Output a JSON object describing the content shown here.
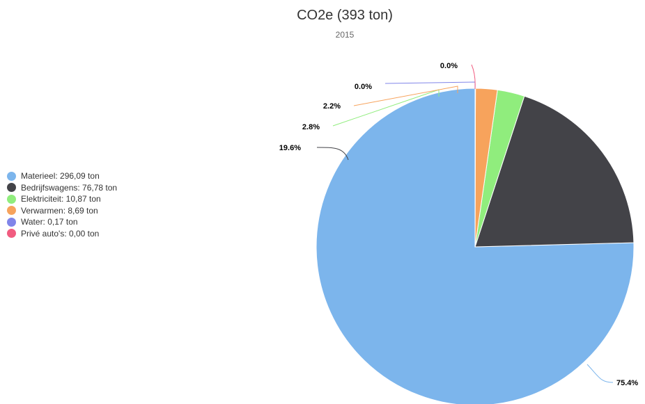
{
  "chart_data": {
    "type": "pie",
    "title": "CO2e (393 ton)",
    "subtitle": "2015",
    "legend_position": "left",
    "series": [
      {
        "name": "Materieel",
        "value": 296.09,
        "legend": "Materieel: 296,09 ton",
        "label": "75.4%",
        "color": "#7cb5ec"
      },
      {
        "name": "Bedrijfswagens",
        "value": 76.78,
        "legend": "Bedrijfswagens: 76,78 ton",
        "label": "19.6%",
        "color": "#434348"
      },
      {
        "name": "Elektriciteit",
        "value": 10.87,
        "legend": "Elektriciteit: 10,87 ton",
        "label": "2.8%",
        "color": "#90ed7d"
      },
      {
        "name": "Verwarmen",
        "value": 8.69,
        "legend": "Verwarmen: 8,69 ton",
        "label": "2.2%",
        "color": "#f7a35c"
      },
      {
        "name": "Water",
        "value": 0.17,
        "legend": "Water: 0,17 ton",
        "label": "0.0%",
        "color": "#8085e9"
      },
      {
        "name": "Privé auto's",
        "value": 0.0,
        "legend": "Privé auto's: 0,00 ton",
        "label": "0.0%",
        "color": "#f15c80"
      }
    ]
  }
}
